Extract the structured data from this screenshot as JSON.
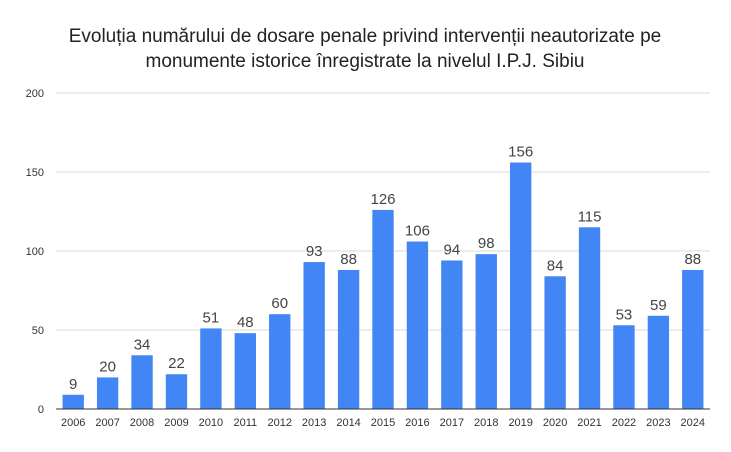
{
  "chart_data": {
    "type": "bar",
    "title_lines": [
      "Evoluția numărului de dosare penale privind intervenții neautorizate pe",
      "monumente istorice înregistrate la nivelul I.P.J. Sibiu"
    ],
    "categories": [
      "2006",
      "2007",
      "2008",
      "2009",
      "2010",
      "2011",
      "2012",
      "2013",
      "2014",
      "2015",
      "2016",
      "2017",
      "2018",
      "2019",
      "2020",
      "2021",
      "2022",
      "2023",
      "2024"
    ],
    "values": [
      9,
      20,
      34,
      22,
      51,
      48,
      60,
      93,
      88,
      126,
      106,
      94,
      98,
      156,
      84,
      115,
      53,
      59,
      88
    ],
    "ylim": [
      0,
      200
    ],
    "yticks": [
      "0",
      "50",
      "100",
      "150",
      "200"
    ],
    "ytick_values": [
      0,
      50,
      100,
      150,
      200
    ],
    "grid": true,
    "legend": "none",
    "bar_color": "#4285f4"
  }
}
